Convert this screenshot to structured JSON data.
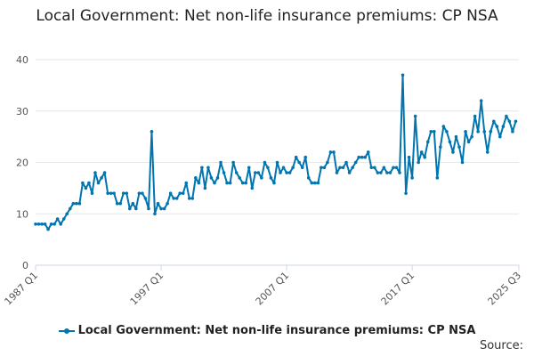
{
  "chart_data": {
    "type": "line",
    "title": "Local Government: Net non-life insurance premiums: CP NSA",
    "xlabel": "",
    "ylabel": "",
    "ylim": [
      0,
      40
    ],
    "yticks": [
      0,
      10,
      20,
      30,
      40
    ],
    "x_tick_labels": [
      "1987 Q1",
      "1997 Q1",
      "2007 Q1",
      "2017 Q1",
      "2025 Q3"
    ],
    "x_start": "1987 Q1",
    "x_end": "2025 Q3",
    "grid": true,
    "legend_position": "bottom",
    "series": [
      {
        "name": "Local Government: Net non-life insurance premiums: CP NSA",
        "color": "#0075b0",
        "values": [
          8,
          8,
          8,
          8,
          7,
          8,
          8,
          9,
          8,
          9,
          10,
          11,
          12,
          12,
          12,
          16,
          15,
          16,
          14,
          18,
          16,
          17,
          18,
          14,
          14,
          14,
          12,
          12,
          14,
          14,
          11,
          12,
          11,
          14,
          14,
          13,
          11,
          26,
          10,
          12,
          11,
          11,
          12,
          14,
          13,
          13,
          14,
          14,
          16,
          13,
          13,
          17,
          16,
          19,
          15,
          19,
          17,
          16,
          17,
          20,
          18,
          16,
          16,
          20,
          18,
          17,
          16,
          16,
          19,
          15,
          18,
          18,
          17,
          20,
          19,
          17,
          16,
          20,
          18,
          19,
          18,
          18,
          19,
          21,
          20,
          19,
          21,
          17,
          16,
          16,
          16,
          19,
          19,
          20,
          22,
          22,
          18,
          19,
          19,
          20,
          18,
          19,
          20,
          21,
          21,
          21,
          22,
          19,
          19,
          18,
          18,
          19,
          18,
          18,
          19,
          19,
          18,
          37,
          14,
          21,
          17,
          29,
          20,
          22,
          21,
          24,
          26,
          26,
          17,
          23,
          27,
          26,
          24,
          22,
          25,
          23,
          20,
          26,
          24,
          25,
          29,
          26,
          32,
          26,
          22,
          26,
          28,
          27,
          25,
          27,
          29,
          28,
          26,
          28
        ]
      }
    ]
  },
  "source_label": "Source:"
}
